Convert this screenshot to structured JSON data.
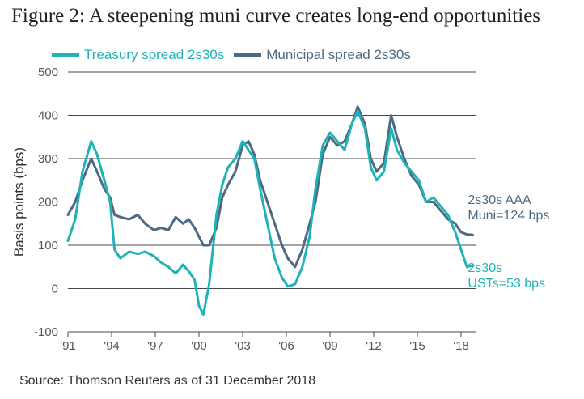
{
  "title": "Figure 2: A steepening muni curve creates long-end opportunities",
  "source": "Source: Thomson Reuters as of 31 December 2018",
  "colors": {
    "treasury": "#1fb3b7",
    "municipal": "#4d6a82",
    "grid": "#4a4a4a",
    "text": "#555555"
  },
  "chart_data": {
    "type": "line",
    "title": "Figure 2: A steepening muni curve creates long-end opportunities",
    "xlabel": "",
    "ylabel": "Basis points (bps)",
    "xlim": [
      1991,
      2019
    ],
    "ylim": [
      -100,
      500
    ],
    "yticks": [
      -100,
      0,
      100,
      200,
      300,
      400,
      500
    ],
    "ytick_labels": [
      "-100",
      "0",
      "100",
      "200",
      "300",
      "400",
      "500"
    ],
    "xticks": [
      1991,
      1994,
      1997,
      2000,
      2003,
      2006,
      2009,
      2012,
      2015,
      2018
    ],
    "xtick_labels": [
      "'91",
      "'94",
      "'97",
      "'00",
      "'03",
      "'06",
      "'09",
      "'12",
      "'15",
      "'18"
    ],
    "legend_position": "top-left",
    "series": [
      {
        "name": "Treasury spread 2s30s",
        "color": "#1fb3b7",
        "x": [
          1991,
          1991.5,
          1992,
          1992.6,
          1993,
          1993.5,
          1993.9,
          1994.2,
          1994.6,
          1995.2,
          1995.8,
          1996.3,
          1996.9,
          1997.4,
          1997.9,
          1998.4,
          1998.9,
          1999.3,
          1999.7,
          2000.0,
          2000.3,
          2000.7,
          2001.2,
          2001.6,
          2002.0,
          2002.5,
          2003.0,
          2003.4,
          2003.8,
          2004.2,
          2004.7,
          2005.2,
          2005.7,
          2006.1,
          2006.6,
          2007.1,
          2007.6,
          2008.0,
          2008.5,
          2009.0,
          2009.5,
          2010.0,
          2010.5,
          2010.9,
          2011.4,
          2011.8,
          2012.2,
          2012.7,
          2013.2,
          2013.6,
          2014.1,
          2014.6,
          2015.1,
          2015.6,
          2016.1,
          2016.6,
          2017.1,
          2017.6,
          2018.0,
          2018.4,
          2018.8
        ],
        "values": [
          110,
          160,
          270,
          340,
          310,
          250,
          200,
          90,
          70,
          85,
          80,
          85,
          75,
          60,
          50,
          35,
          55,
          40,
          20,
          -40,
          -60,
          10,
          170,
          240,
          280,
          300,
          340,
          320,
          300,
          230,
          150,
          70,
          25,
          5,
          10,
          50,
          120,
          230,
          330,
          360,
          340,
          320,
          380,
          410,
          370,
          280,
          250,
          270,
          370,
          320,
          290,
          270,
          250,
          200,
          210,
          190,
          170,
          130,
          90,
          50,
          53
        ]
      },
      {
        "name": "Municipal spread 2s30s",
        "color": "#4d6a82",
        "x": [
          1991,
          1991.5,
          1992,
          1992.6,
          1993,
          1993.5,
          1993.9,
          1994.2,
          1994.6,
          1995.2,
          1995.8,
          1996.3,
          1996.9,
          1997.4,
          1997.9,
          1998.4,
          1998.9,
          1999.3,
          1999.7,
          2000.0,
          2000.3,
          2000.7,
          2001.2,
          2001.6,
          2002.0,
          2002.5,
          2003.0,
          2003.4,
          2003.8,
          2004.2,
          2004.7,
          2005.2,
          2005.7,
          2006.1,
          2006.6,
          2007.1,
          2007.6,
          2008.0,
          2008.5,
          2009.0,
          2009.5,
          2010.0,
          2010.5,
          2010.9,
          2011.4,
          2011.8,
          2012.2,
          2012.7,
          2013.2,
          2013.6,
          2014.1,
          2014.6,
          2015.1,
          2015.6,
          2016.1,
          2016.6,
          2017.1,
          2017.6,
          2018.0,
          2018.4,
          2018.8
        ],
        "values": [
          170,
          200,
          250,
          300,
          270,
          230,
          210,
          170,
          165,
          160,
          170,
          150,
          135,
          140,
          135,
          165,
          150,
          160,
          140,
          120,
          100,
          100,
          140,
          210,
          240,
          270,
          330,
          340,
          310,
          250,
          200,
          150,
          100,
          70,
          50,
          90,
          150,
          200,
          310,
          350,
          330,
          340,
          380,
          420,
          380,
          300,
          270,
          290,
          400,
          350,
          300,
          260,
          240,
          200,
          200,
          180,
          160,
          150,
          130,
          125,
          124
        ]
      }
    ],
    "annotations": [
      {
        "series": "Municipal spread 2s30s",
        "x": 2018.8,
        "y": 124,
        "lines": [
          "2s30s AAA",
          "Muni=124 bps"
        ]
      },
      {
        "series": "Treasury spread 2s30s",
        "x": 2018.8,
        "y": 53,
        "lines": [
          "2s30s",
          "USTs=53 bps"
        ]
      }
    ]
  }
}
